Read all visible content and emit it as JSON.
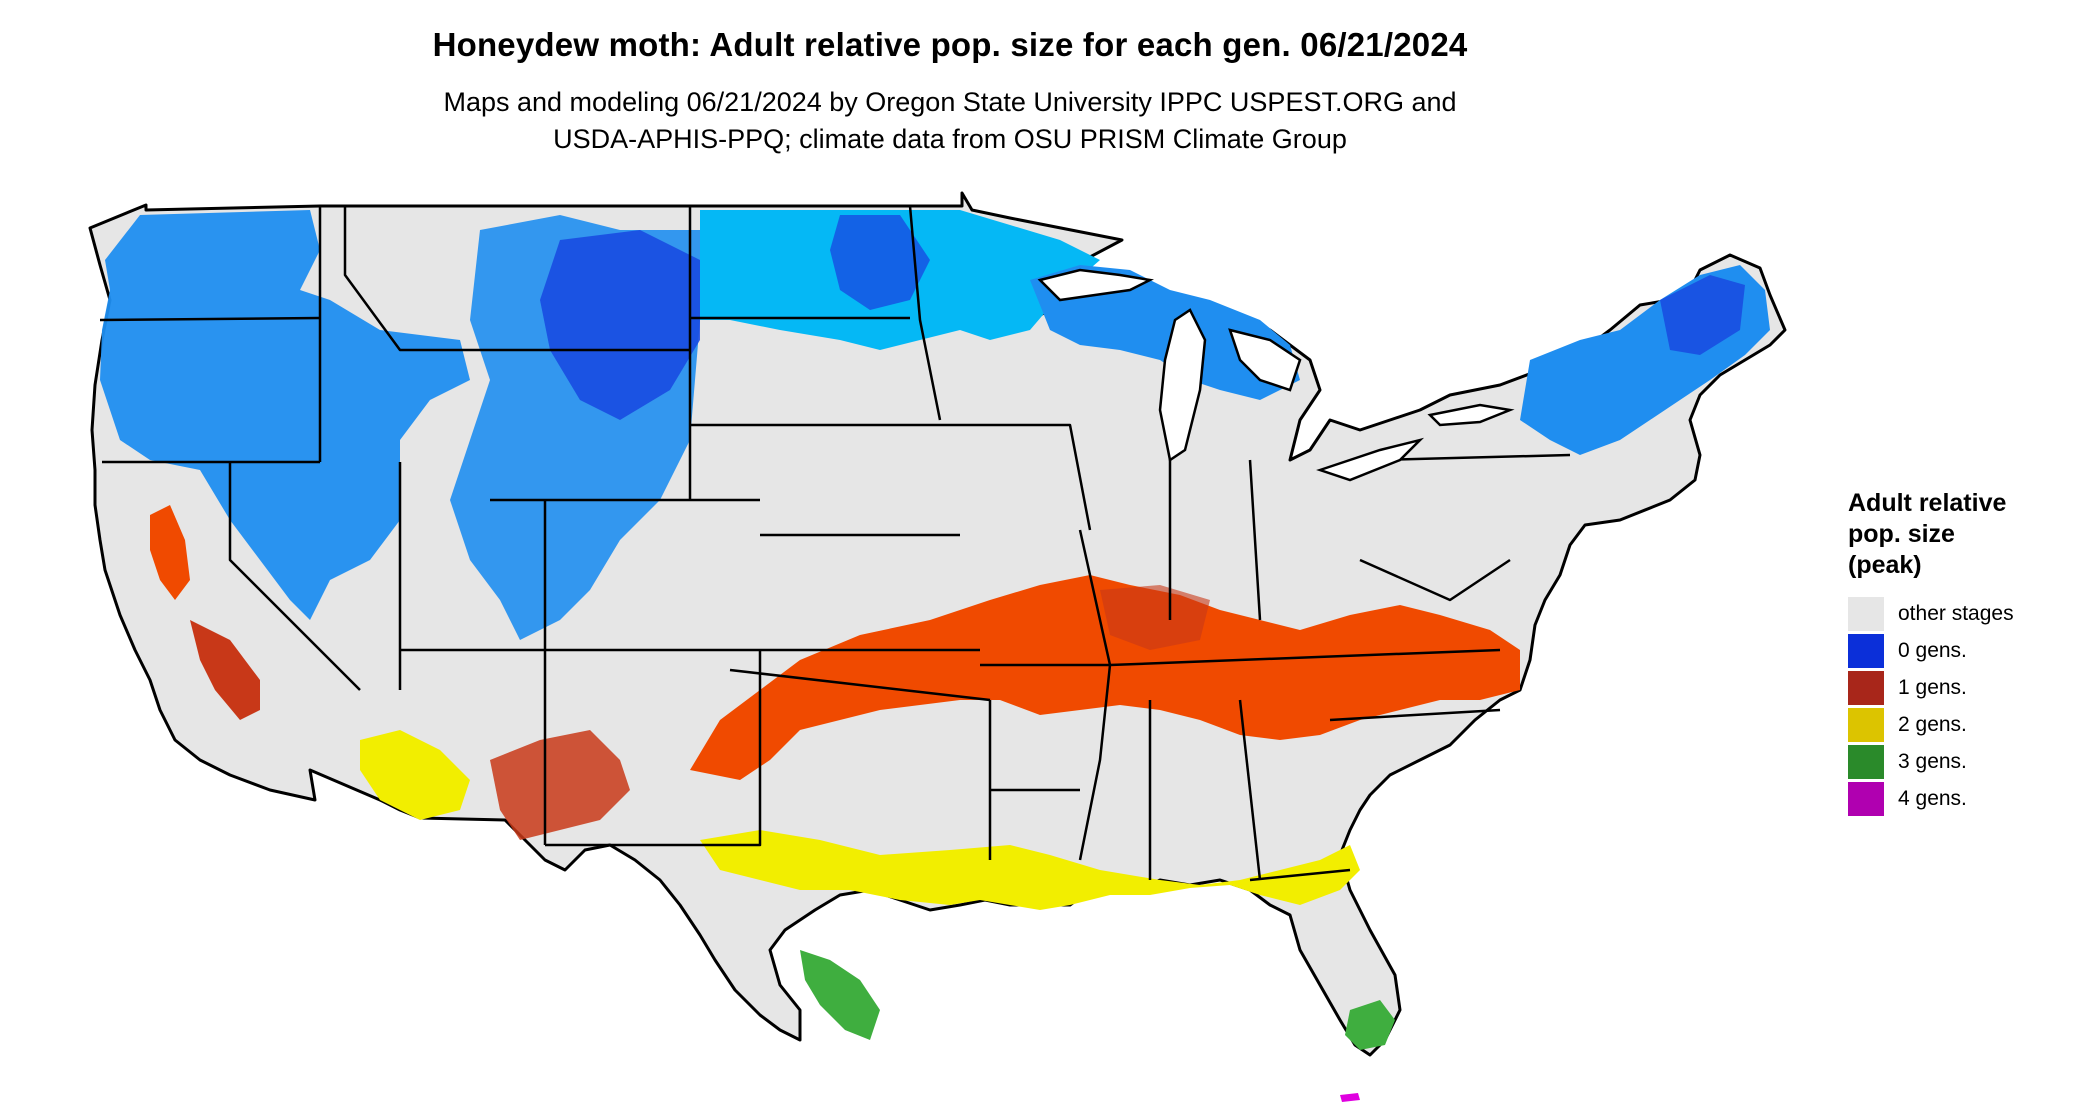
{
  "header": {
    "title": "Honeydew moth: Adult relative pop. size for each gen. 06/21/2024",
    "subtitle_line1": "Maps and modeling 06/21/2024 by Oregon State University IPPC USPEST.ORG and",
    "subtitle_line2": "USDA-APHIS-PPQ; climate data from OSU PRISM Climate Group"
  },
  "legend": {
    "title_line1": "Adult relative",
    "title_line2": "pop. size",
    "title_line3": "(peak)",
    "items": [
      {
        "label": "other stages",
        "color": "#e6e6e6"
      },
      {
        "label": "0 gens.",
        "color": "#0b2fd9"
      },
      {
        "label": "1 gens.",
        "color": "#a8261a"
      },
      {
        "label": "2 gens.",
        "color": "#dcc400"
      },
      {
        "label": "3 gens.",
        "color": "#2a8a2a"
      },
      {
        "label": "4 gens.",
        "color": "#b000b0"
      }
    ]
  },
  "map": {
    "zones": [
      {
        "key": "blue-north",
        "color": "#1f8ef0"
      },
      {
        "key": "cyan-north",
        "color": "#05b8f5"
      },
      {
        "key": "deep-blue",
        "color": "#1846e0"
      },
      {
        "key": "orange-red",
        "color": "#f04a00"
      },
      {
        "key": "dark-red",
        "color": "#c83818"
      },
      {
        "key": "yellow",
        "color": "#f2ee00"
      },
      {
        "key": "green",
        "color": "#3fae3f"
      },
      {
        "key": "magenta",
        "color": "#e000e0"
      },
      {
        "key": "land",
        "color": "#e6e6e6"
      },
      {
        "key": "border",
        "color": "#000000"
      }
    ]
  }
}
